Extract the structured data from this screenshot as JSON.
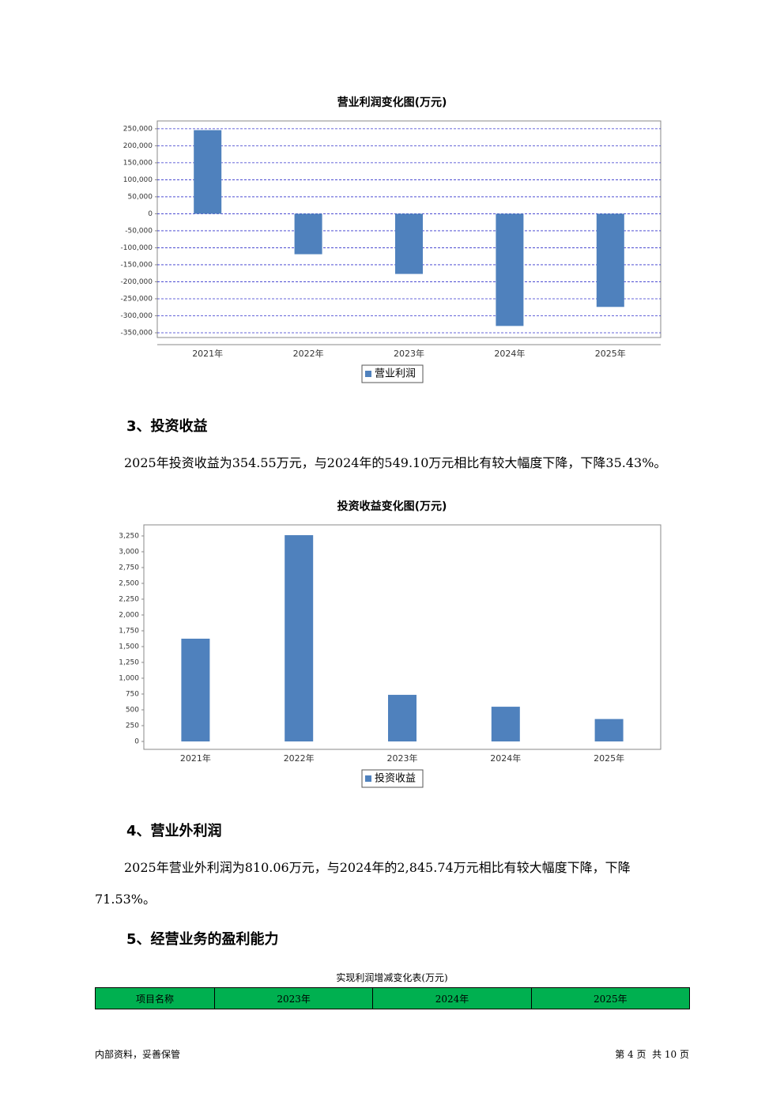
{
  "chart_data": [
    {
      "type": "bar",
      "title": "营业利润变化图(万元)",
      "categories": [
        "2021年",
        "2022年",
        "2023年",
        "2024年",
        "2025年"
      ],
      "series": [
        {
          "name": "营业利润",
          "color": "#4f81bd",
          "values": [
            246000,
            -119000,
            -177000,
            -330000,
            -274000
          ]
        }
      ],
      "ylim": [
        -364000,
        273000
      ],
      "yticks": [
        {
          "value": 250000,
          "label": "250,000"
        },
        {
          "value": 200000,
          "label": "200,000"
        },
        {
          "value": 150000,
          "label": "150,000"
        },
        {
          "value": 100000,
          "label": "100,000"
        },
        {
          "value": 50000,
          "label": "50,000"
        },
        0,
        {
          "value": -50000,
          "label": "-50,000"
        },
        {
          "value": -100000,
          "label": "-100,000"
        },
        {
          "value": -150000,
          "label": "-150,000"
        },
        {
          "value": -200000,
          "label": "-200,000"
        },
        {
          "value": -250000,
          "label": "-250,000"
        },
        {
          "value": -300000,
          "label": "-300,000"
        },
        {
          "value": -350000,
          "label": "-350,000"
        }
      ],
      "grid": true
    },
    {
      "type": "bar",
      "title": "投资收益变化图(万元)",
      "categories": [
        "2021年",
        "2022年",
        "2023年",
        "2024年",
        "2025年"
      ],
      "series": [
        {
          "name": "投资收益",
          "color": "#4f81bd",
          "values": [
            1625,
            3262,
            737,
            549.1,
            354.55
          ]
        }
      ],
      "ylim": [
        0,
        3425
      ],
      "yticks": [
        0,
        250,
        500,
        750,
        {
          "value": 1000,
          "label": "1,000"
        },
        {
          "value": 1250,
          "label": "1,250"
        },
        {
          "value": 1500,
          "label": "1,500"
        },
        {
          "value": 1750,
          "label": "1,750"
        },
        {
          "value": 2000,
          "label": "2,000"
        },
        {
          "value": 2250,
          "label": "2,250"
        },
        {
          "value": 2500,
          "label": "2,500"
        },
        {
          "value": 2750,
          "label": "2,750"
        },
        {
          "value": 3000,
          "label": "3,000"
        },
        {
          "value": 3250,
          "label": "3,250"
        }
      ],
      "grid": false
    }
  ],
  "sections": [
    {
      "heading": "3、投资收益",
      "paragraph": "2025年投资收益为354.55万元，与2024年的549.10万元相比有较大幅度下降，下降35.43%。"
    },
    {
      "heading": "4、营业外利润",
      "paragraph": "2025年营业外利润为810.06万元，与2024年的2,845.74万元相比有较大幅度下降，下降71.53%。"
    },
    {
      "heading": "5、经营业务的盈利能力"
    }
  ],
  "table": {
    "title": "实现利润增减变化表(万元)",
    "header": [
      "项目名称",
      "2023年",
      "2024年",
      "2025年"
    ]
  },
  "footer": {
    "left": "内部资料，妥善保管",
    "right": "第 4 页  共 10 页"
  }
}
